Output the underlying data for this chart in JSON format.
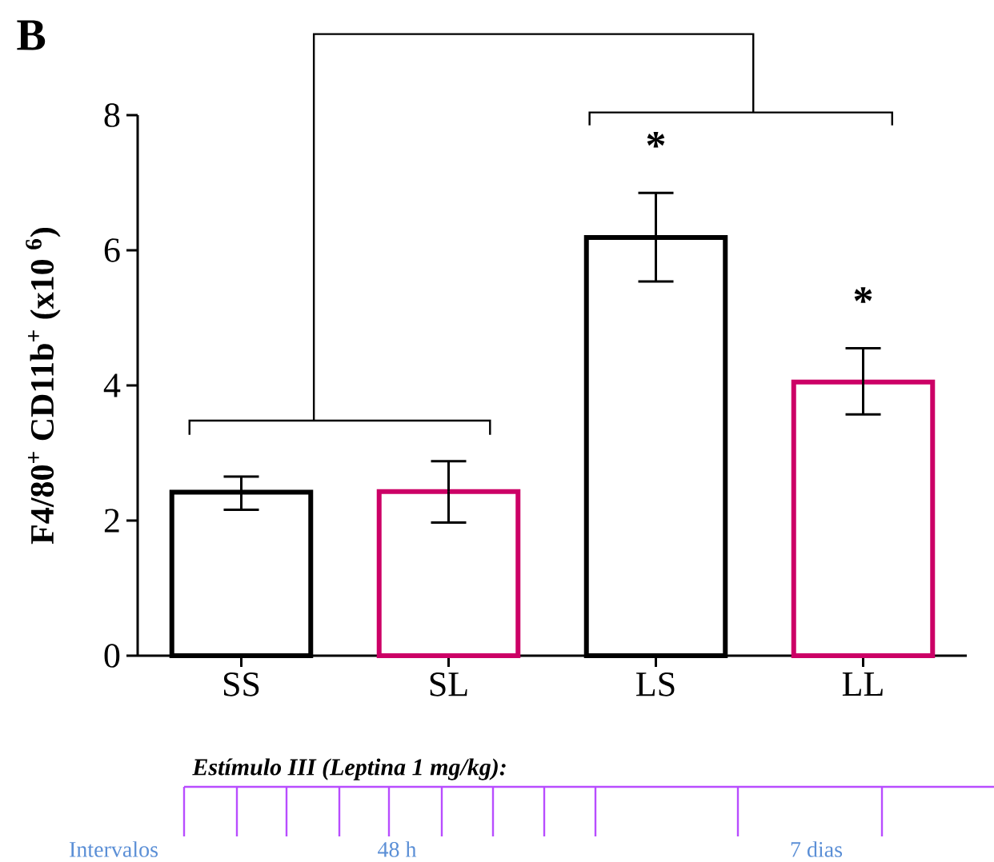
{
  "chart_data": {
    "type": "bar",
    "categories": [
      "SS",
      "SL",
      "LS",
      "LL"
    ],
    "values": [
      2.42,
      2.43,
      6.19,
      4.05
    ],
    "colors": [
      "#000000",
      "#cc0066",
      "#000000",
      "#cc0066"
    ],
    "errors": [
      [
        2.16,
        2.65
      ],
      [
        1.97,
        2.88
      ],
      [
        5.54,
        6.85
      ],
      [
        3.57,
        4.55
      ]
    ],
    "ylabel": "F4/80$^{+}$ CD11b$^{+}$ (x10 $^{6}$)",
    "ylim": [
      0,
      8
    ],
    "yticks": [
      0,
      2,
      4,
      6,
      8
    ],
    "annotations": [
      "B",
      "*",
      "*",
      "Estímulo III (Leptina 1 mg/kg):",
      "Intervalos",
      "48 h",
      "7 dias"
    ]
  }
}
